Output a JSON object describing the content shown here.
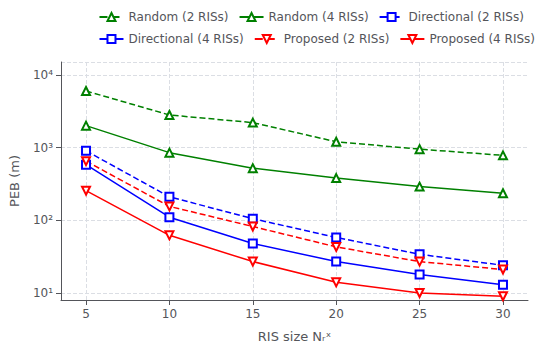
{
  "chart_data": {
    "type": "line",
    "x": [
      5,
      10,
      15,
      20,
      25,
      30
    ],
    "series": [
      {
        "name": "Random (2 RISs)",
        "color": "#008000",
        "line_style": "dashed",
        "marker": "triangle-up",
        "values": [
          6000,
          2800,
          2200,
          1200,
          950,
          780
        ]
      },
      {
        "name": "Random (4 RISs)",
        "color": "#008000",
        "line_style": "solid",
        "marker": "triangle-up",
        "values": [
          2000,
          850,
          520,
          380,
          290,
          235
        ]
      },
      {
        "name": "Directional (2 RISs)",
        "color": "#0000ff",
        "line_style": "dashed",
        "marker": "square",
        "values": [
          900,
          210,
          105,
          58,
          34,
          24
        ]
      },
      {
        "name": "Directional (4 RISs)",
        "color": "#0000ff",
        "line_style": "solid",
        "marker": "square",
        "values": [
          580,
          110,
          48,
          27,
          18,
          13
        ]
      },
      {
        "name": "Proposed (2 RISs)",
        "color": "#ff0000",
        "line_style": "dashed",
        "marker": "triangle-down",
        "values": [
          650,
          155,
          82,
          43,
          27,
          21
        ]
      },
      {
        "name": "Proposed (4 RISs)",
        "color": "#ff0000",
        "line_style": "solid",
        "marker": "triangle-down",
        "values": [
          255,
          62,
          27,
          14,
          10,
          9
        ]
      }
    ],
    "xlabel": "RIS size Nᵣˣ",
    "ylabel": "PEB (m)",
    "xlim": [
      3.5,
      31.5
    ],
    "xticks": [
      5,
      10,
      15,
      20,
      25,
      30
    ],
    "ylim": [
      8,
      15000
    ],
    "yticks": [
      {
        "value": 10,
        "label": "10¹"
      },
      {
        "value": 100,
        "label": "10²"
      },
      {
        "value": 1000,
        "label": "10³"
      },
      {
        "value": 10000,
        "label": "10⁴"
      }
    ],
    "log": "y",
    "grid": true,
    "legend": "upper right"
  }
}
